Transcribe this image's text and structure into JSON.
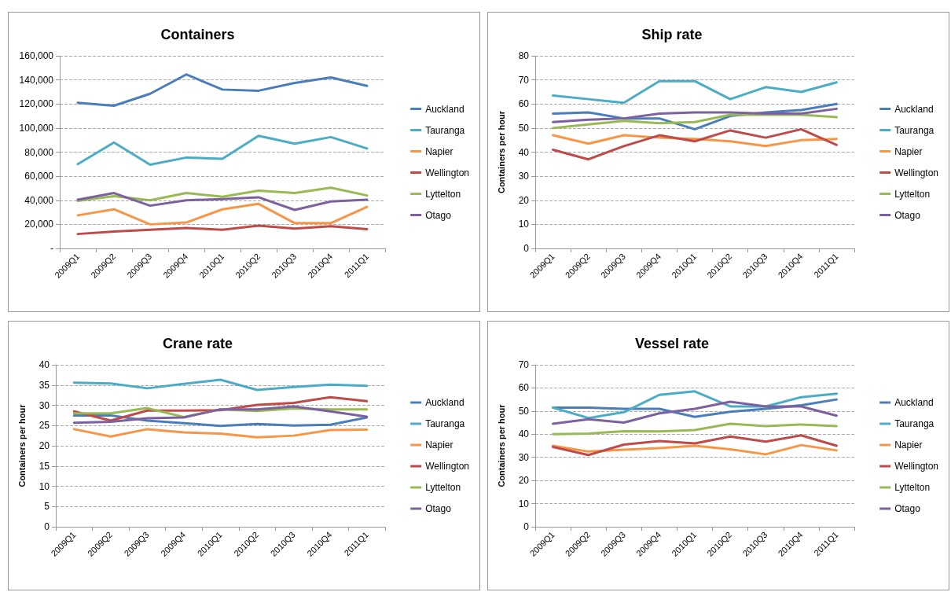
{
  "chart_data": [
    {
      "type": "line",
      "title": "Containers",
      "categories": [
        "2009Q1",
        "2009Q2",
        "2009Q3",
        "2009Q4",
        "2010Q1",
        "2010Q2",
        "2010Q3",
        "2010Q4",
        "2011Q1"
      ],
      "ylim": [
        0,
        160000
      ],
      "yticks": [
        {
          "value": 0,
          "label": "-"
        },
        {
          "value": 20000,
          "label": "20,000"
        },
        {
          "value": 40000,
          "label": "40,000"
        },
        {
          "value": 60000,
          "label": "60,000"
        },
        {
          "value": 80000,
          "label": "80,000"
        },
        {
          "value": 100000,
          "label": "100,000"
        },
        {
          "value": 120000,
          "label": "120,000"
        },
        {
          "value": 140000,
          "label": "140,000"
        },
        {
          "value": 160000,
          "label": "160,000"
        }
      ],
      "grid": "y",
      "legend": "right",
      "marker": "none",
      "line_style": "solid",
      "series": [
        {
          "name": "Auckland",
          "color": "#4a7ebb",
          "values": [
            121000,
            118500,
            128500,
            144500,
            132000,
            131000,
            137500,
            142000,
            135000
          ]
        },
        {
          "name": "Tauranga",
          "color": "#4bacc6",
          "values": [
            70000,
            88000,
            69500,
            75500,
            74500,
            93500,
            87000,
            92500,
            83000
          ]
        },
        {
          "name": "Napier",
          "color": "#f79646",
          "values": [
            27500,
            32500,
            20000,
            21500,
            32500,
            37000,
            21000,
            21000,
            34500
          ]
        },
        {
          "name": "Wellington",
          "color": "#be4b48",
          "values": [
            12000,
            14000,
            15500,
            17000,
            15500,
            19000,
            16500,
            18500,
            16000
          ]
        },
        {
          "name": "Lyttelton",
          "color": "#98b954",
          "values": [
            39500,
            43500,
            40000,
            46000,
            43000,
            48000,
            46000,
            50500,
            44000
          ]
        },
        {
          "name": "Otago",
          "color": "#7d60a0",
          "values": [
            40500,
            46000,
            35500,
            40000,
            41000,
            42500,
            32000,
            39000,
            40500
          ]
        }
      ]
    },
    {
      "type": "line",
      "title": "Ship rate",
      "ylabel": "Containers per hour",
      "categories": [
        "2009Q1",
        "2009Q2",
        "2009Q3",
        "2009Q4",
        "2010Q1",
        "2010Q2",
        "2010Q3",
        "2010Q4",
        "2011Q1"
      ],
      "ylim": [
        0,
        80
      ],
      "yticks": [
        0,
        10,
        20,
        30,
        40,
        50,
        60,
        70,
        80
      ],
      "grid": "y",
      "legend": "right",
      "marker": "none",
      "line_style": "solid",
      "series": [
        {
          "name": "Auckland",
          "color": "#4a7ebb",
          "values": [
            56,
            56.5,
            54,
            54,
            49.5,
            55,
            56.5,
            57.5,
            60
          ]
        },
        {
          "name": "Tauranga",
          "color": "#4bacc6",
          "values": [
            63.5,
            62,
            60.5,
            69.5,
            69.5,
            62,
            67,
            65,
            69
          ]
        },
        {
          "name": "Napier",
          "color": "#f79646",
          "values": [
            47,
            43.5,
            47,
            46,
            45.5,
            44.5,
            42.5,
            45,
            45.5
          ]
        },
        {
          "name": "Wellington",
          "color": "#be4b48",
          "values": [
            41,
            37,
            42.5,
            47,
            44.5,
            49,
            46,
            49.5,
            43
          ]
        },
        {
          "name": "Lyttelton",
          "color": "#98b954",
          "values": [
            50,
            51.5,
            53,
            52,
            52.5,
            55.5,
            55.5,
            55.5,
            54.5
          ]
        },
        {
          "name": "Otago",
          "color": "#7d60a0",
          "values": [
            52.5,
            53.5,
            54,
            56,
            56.5,
            56.5,
            56,
            56,
            58
          ]
        }
      ]
    },
    {
      "type": "line",
      "title": "Crane rate",
      "ylabel": "Containers per hour",
      "categories": [
        "2009Q1",
        "2009Q2",
        "2009Q3",
        "2009Q4",
        "2010Q1",
        "2010Q2",
        "2010Q3",
        "2010Q4",
        "2011Q1"
      ],
      "ylim": [
        0,
        40
      ],
      "yticks": [
        0,
        5,
        10,
        15,
        20,
        25,
        30,
        35,
        40
      ],
      "grid": "y",
      "legend": "right",
      "marker": "none",
      "line_style": "solid",
      "series": [
        {
          "name": "Auckland",
          "color": "#4a7ebb",
          "values": [
            27.5,
            27.5,
            26.2,
            25.6,
            24.9,
            25.4,
            25,
            25.2,
            27
          ]
        },
        {
          "name": "Tauranga",
          "color": "#4bacc6",
          "values": [
            35.6,
            35.4,
            34.2,
            35.3,
            36.3,
            33.8,
            34.5,
            35.1,
            34.8
          ]
        },
        {
          "name": "Napier",
          "color": "#f79646",
          "values": [
            24.1,
            22.3,
            24.1,
            23.3,
            23,
            22.1,
            22.5,
            23.9,
            24
          ]
        },
        {
          "name": "Wellington",
          "color": "#be4b48",
          "values": [
            28.5,
            26.2,
            28.7,
            28.7,
            28.8,
            30.1,
            30.6,
            32,
            31
          ]
        },
        {
          "name": "Lyttelton",
          "color": "#98b954",
          "values": [
            28,
            28,
            29.3,
            27.1,
            29,
            28.6,
            29.2,
            29,
            29
          ]
        },
        {
          "name": "Otago",
          "color": "#7d60a0",
          "values": [
            25.7,
            25.9,
            26.8,
            27,
            29,
            29,
            29.7,
            28.5,
            27.2
          ]
        }
      ]
    },
    {
      "type": "line",
      "title": "Vessel rate",
      "ylabel": "Containers per hour",
      "categories": [
        "2009Q1",
        "2009Q2",
        "2009Q3",
        "2009Q4",
        "2010Q1",
        "2010Q2",
        "2010Q3",
        "2010Q4",
        "2011Q1"
      ],
      "ylim": [
        0,
        70
      ],
      "yticks": [
        0,
        10,
        20,
        30,
        40,
        50,
        60,
        70
      ],
      "grid": "y",
      "legend": "right",
      "marker": "none",
      "line_style": "solid",
      "series": [
        {
          "name": "Auckland",
          "color": "#4a7ebb",
          "values": [
            51.5,
            51.5,
            51,
            51,
            47.5,
            49.7,
            51,
            52.5,
            55
          ]
        },
        {
          "name": "Tauranga",
          "color": "#4bacc6",
          "values": [
            51.5,
            47,
            49.5,
            57,
            58.5,
            52,
            52,
            56,
            57.5
          ]
        },
        {
          "name": "Napier",
          "color": "#f79646",
          "values": [
            35,
            32.5,
            33.3,
            34,
            35,
            33.5,
            31.3,
            35.3,
            33
          ]
        },
        {
          "name": "Wellington",
          "color": "#be4b48",
          "values": [
            34.5,
            31,
            35.5,
            37,
            36,
            39,
            36.8,
            39.5,
            35
          ]
        },
        {
          "name": "Lyttelton",
          "color": "#98b954",
          "values": [
            40,
            40.3,
            41.3,
            41.2,
            41.8,
            44.5,
            43.5,
            44.2,
            43.5
          ]
        },
        {
          "name": "Otago",
          "color": "#7d60a0",
          "values": [
            44.5,
            46.5,
            45,
            49,
            51,
            54,
            52,
            52,
            48
          ]
        }
      ]
    }
  ]
}
